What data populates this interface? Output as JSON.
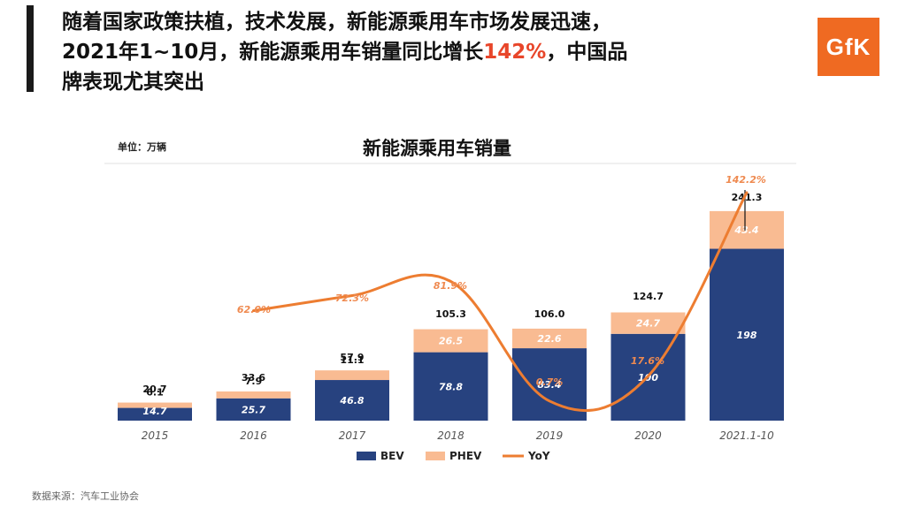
{
  "header": {
    "line1": "随着国家政策扶植，技术发展，新能源乘用车市场发展迅速，",
    "line2_a": "2021年1~10月，新能源乘用车销量同比增长",
    "line2_highlight": "142%",
    "line2_b": "，中国品",
    "line3": "牌表现尤其突出",
    "logo": "GfK"
  },
  "colors": {
    "bev": "#27427f",
    "phev": "#f9bb92",
    "yoy": "#ed7d31",
    "yoy_label": "#ef8a50",
    "accent": "#e8462a",
    "logo_bg": "#ef6a22"
  },
  "chart_data": {
    "type": "bar",
    "stacked": true,
    "title": "新能源乘用车销量",
    "unit_label": "单位：万辆",
    "categories": [
      "2015",
      "2016",
      "2017",
      "2018",
      "2019",
      "2020",
      "2021.1-10"
    ],
    "series": [
      {
        "name": "BEV",
        "values": [
          14.7,
          25.7,
          46.8,
          78.8,
          83.4,
          100,
          198
        ]
      },
      {
        "name": "PHEV",
        "values": [
          6.1,
          7.9,
          11.1,
          26.5,
          22.6,
          24.7,
          43.4
        ]
      }
    ],
    "totals": [
      20.7,
      33.6,
      57.9,
      105.3,
      106.0,
      124.7,
      241.3
    ],
    "total_labels": [
      "20.7",
      "33.6",
      "57.9",
      "105.3",
      "106.0",
      "124.7",
      "241.3"
    ],
    "bev_labels": [
      "14.7",
      "25.7",
      "46.8",
      "78.8",
      "83.4",
      "100",
      "198"
    ],
    "phev_labels": [
      "6.1",
      "7.9",
      "11.1",
      "26.5",
      "22.6",
      "24.7",
      "43.4"
    ],
    "yoy": {
      "name": "YoY",
      "values": [
        null,
        62.0,
        72.3,
        81.9,
        0.7,
        17.6,
        142.2
      ],
      "labels": [
        null,
        "62.0%",
        "72.3%",
        "81.9%",
        "0.7%",
        "17.6%",
        "142.2%"
      ]
    },
    "legend": [
      "BEV",
      "PHEV",
      "YoY"
    ],
    "legend_position": "bottom",
    "ylim": [
      0,
      250
    ]
  },
  "source": "数据来源：汽车工业协会"
}
